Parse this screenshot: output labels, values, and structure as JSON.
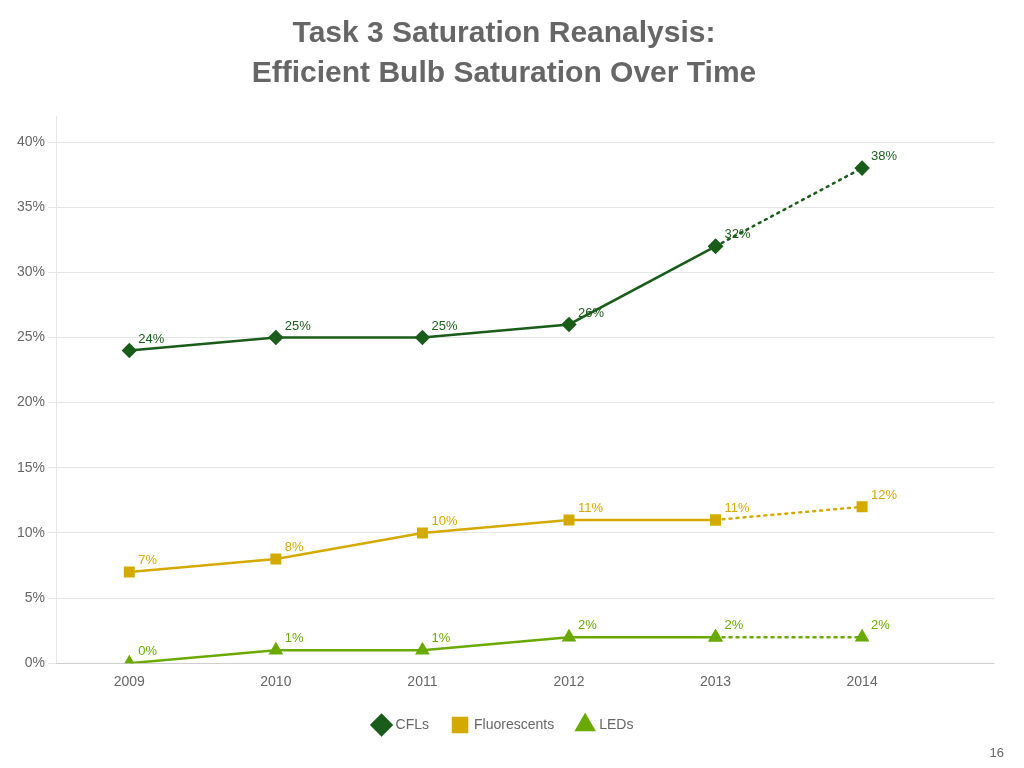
{
  "chart_data": {
    "type": "line",
    "title": "Task 3 Saturation Reanalysis:",
    "subtitle": "Efficient Bulb Saturation Over Time",
    "annotations": [
      "16"
    ],
    "x": [
      2009,
      2010,
      2011,
      2012,
      2013,
      2014
    ],
    "xlim": [
      2008.5,
      2014.9
    ],
    "xticks": [
      2009,
      2010,
      2011,
      2012,
      2013,
      2014
    ],
    "ylim": [
      0,
      0.42
    ],
    "yticks": [
      {
        "value": 0.0,
        "label": "0%"
      },
      {
        "value": 0.05,
        "label": "5%"
      },
      {
        "value": 0.1,
        "label": "10%"
      },
      {
        "value": 0.15,
        "label": "15%"
      },
      {
        "value": 0.2,
        "label": "20%"
      },
      {
        "value": 0.25,
        "label": "25%"
      },
      {
        "value": 0.3,
        "label": "30%"
      },
      {
        "value": 0.35,
        "label": "35%"
      },
      {
        "value": 0.4,
        "label": "40%"
      }
    ],
    "grid": "y",
    "legend": "bottom",
    "data_labels": true,
    "series": [
      {
        "name": "CFLs",
        "color": "#1a5c1a",
        "marker": "diamond",
        "line_style": "solid",
        "values": [
          0.24,
          0.25,
          0.25,
          0.26,
          0.32,
          null
        ],
        "value_labels": [
          "24%",
          "25%",
          "25%",
          "26%",
          "32%",
          null
        ]
      },
      {
        "name": "CFLs",
        "color": "#1a5c1a",
        "marker": "diamond",
        "line_style": "dotted",
        "values": [
          null,
          null,
          null,
          null,
          0.32,
          0.38
        ],
        "value_labels": [
          null,
          null,
          null,
          null,
          "32%",
          "38%"
        ]
      },
      {
        "name": "Fluorescents",
        "color": "#d4aa00",
        "marker": "square",
        "line_style": "solid",
        "values": [
          0.07,
          0.08,
          0.1,
          0.11,
          0.11,
          null
        ],
        "value_labels": [
          "7%",
          "8%",
          "10%",
          "11%",
          "11%",
          null
        ]
      },
      {
        "name": "Fluorescents",
        "color": "#d4aa00",
        "marker": "square",
        "line_style": "dotted",
        "values": [
          null,
          null,
          null,
          null,
          0.11,
          0.12
        ],
        "value_labels": [
          null,
          null,
          null,
          null,
          "11%",
          "12%"
        ]
      },
      {
        "name": "LEDs",
        "color": "#6aaa00",
        "marker": "triangle",
        "line_style": "solid",
        "values": [
          0.0,
          0.01,
          0.01,
          0.02,
          0.02,
          null
        ],
        "value_labels": [
          "0%",
          "1%",
          "1%",
          "2%",
          "2%",
          null
        ]
      },
      {
        "name": "LEDs",
        "color": "#6aaa00",
        "marker": "triangle",
        "line_style": "dotted",
        "values": [
          null,
          null,
          null,
          null,
          0.02,
          0.02
        ],
        "value_labels": [
          null,
          null,
          null,
          null,
          "2%",
          "2%"
        ]
      }
    ]
  }
}
